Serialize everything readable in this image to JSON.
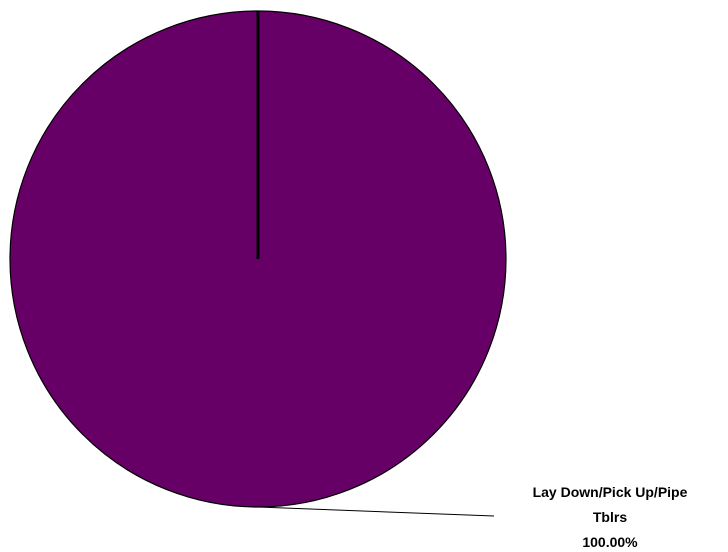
{
  "chart_data": {
    "type": "pie",
    "slices": [
      {
        "label_lines": [
          "Lay Down/Pick Up/Pipe",
          "Tblrs"
        ],
        "percent_label": "100.00%",
        "value": 100.0,
        "color": "#660066"
      }
    ],
    "edge_color": "#000000",
    "start_angle_deg": 90,
    "legend": "none"
  }
}
